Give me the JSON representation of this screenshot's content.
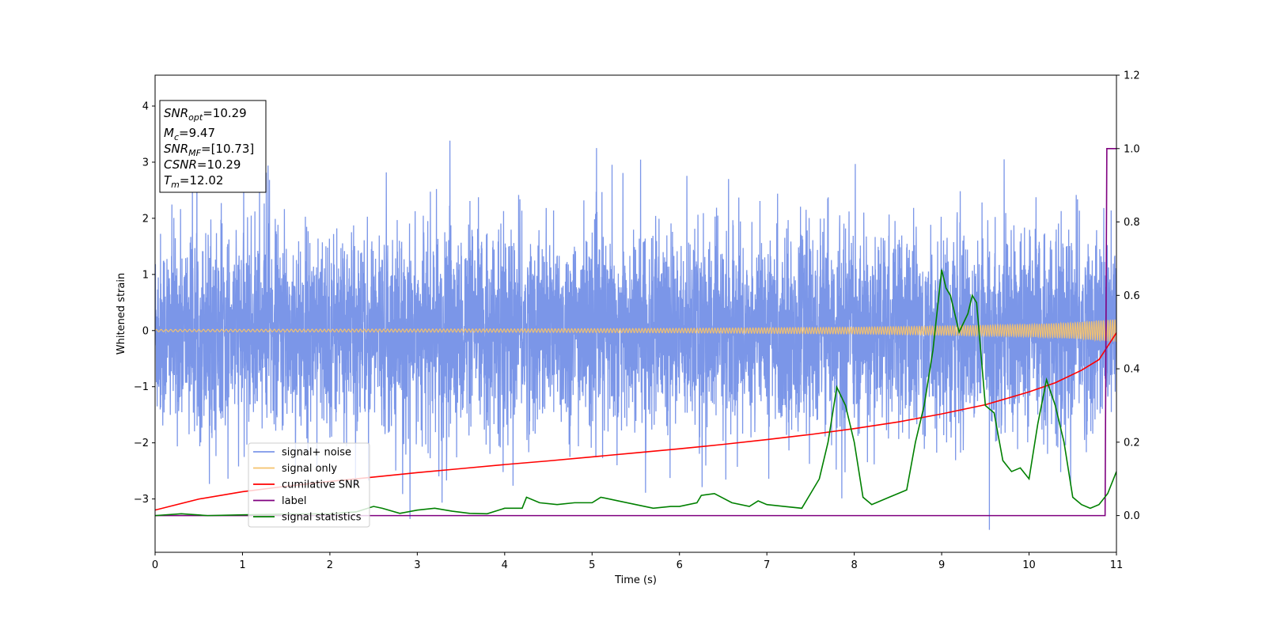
{
  "chart_data": {
    "type": "line",
    "xlabel": "Time (s)",
    "ylabel": "Whitened strain",
    "xlim": [
      0,
      11
    ],
    "ylim": [
      -3.95,
      4.55
    ],
    "y2lim": [
      -0.1,
      1.2
    ],
    "xticks": [
      0,
      1,
      2,
      3,
      4,
      5,
      6,
      7,
      8,
      9,
      10,
      11
    ],
    "yticks": [
      -3,
      -2,
      -1,
      0,
      1,
      2,
      3,
      4
    ],
    "y2ticks": [
      "0.0",
      "0.2",
      "0.4",
      "0.6",
      "0.8",
      "1.0",
      "1.2"
    ],
    "y2tick_values": [
      0.0,
      0.2,
      0.4,
      0.6,
      0.8,
      1.0,
      1.2
    ],
    "grid": false,
    "legend_position": "lower-left",
    "annotation": {
      "lines": [
        {
          "base": "SNR",
          "sub": "opt",
          "value": "=10.29"
        },
        {
          "base": "M",
          "sub": "c",
          "value": "=9.47"
        },
        {
          "base": "SNR",
          "sub": "MF",
          "value": "=[10.73]"
        },
        {
          "base": "CSNR",
          "sub": "",
          "value": "=10.29"
        },
        {
          "base": "T",
          "sub": "m",
          "value": "=12.02"
        }
      ]
    },
    "series": [
      {
        "name": "signal+ noise",
        "axis": "left",
        "color": "#7b96e8",
        "description_points": {
          "mean": 0,
          "typical_band": [
            -1.5,
            1.5
          ],
          "spikes_max": 3.62,
          "spikes_min": -3.55
        }
      },
      {
        "name": "signal only",
        "axis": "left",
        "color": "#f5c26b",
        "amplitude_x": [
          0,
          2,
          4,
          6,
          8,
          9,
          10,
          10.5,
          11
        ],
        "amplitude_y": [
          0.02,
          0.025,
          0.03,
          0.04,
          0.06,
          0.08,
          0.11,
          0.14,
          0.2
        ]
      },
      {
        "name": "cumilative SNR",
        "axis": "right",
        "color": "#ff0000",
        "x": [
          0,
          0.5,
          1,
          1.5,
          2,
          2.5,
          3,
          3.5,
          4,
          4.5,
          5,
          5.5,
          6,
          6.5,
          7,
          7.5,
          8,
          8.5,
          9,
          9.5,
          10,
          10.3,
          10.6,
          10.8,
          11
        ],
        "y": [
          0.015,
          0.045,
          0.065,
          0.08,
          0.093,
          0.105,
          0.117,
          0.128,
          0.139,
          0.149,
          0.16,
          0.171,
          0.182,
          0.194,
          0.207,
          0.221,
          0.237,
          0.255,
          0.277,
          0.302,
          0.337,
          0.362,
          0.396,
          0.425,
          0.498
        ]
      },
      {
        "name": "label",
        "axis": "right",
        "color": "#7f007f",
        "x": [
          0,
          10.87,
          10.89,
          11
        ],
        "y": [
          0.0,
          0.0,
          1.0,
          1.0
        ]
      },
      {
        "name": "signal statistics",
        "axis": "right",
        "color": "#008000",
        "x": [
          0,
          0.3,
          0.6,
          1.0,
          1.5,
          2.0,
          2.3,
          2.5,
          2.6,
          2.8,
          3.0,
          3.2,
          3.4,
          3.6,
          3.8,
          4.0,
          4.2,
          4.25,
          4.4,
          4.6,
          4.8,
          5.0,
          5.1,
          5.3,
          5.5,
          5.7,
          5.9,
          6.0,
          6.2,
          6.25,
          6.4,
          6.6,
          6.8,
          6.9,
          7.0,
          7.2,
          7.4,
          7.6,
          7.7,
          7.8,
          7.9,
          8.0,
          8.1,
          8.2,
          8.4,
          8.6,
          8.7,
          8.8,
          8.9,
          9.0,
          9.05,
          9.1,
          9.2,
          9.3,
          9.35,
          9.4,
          9.5,
          9.6,
          9.7,
          9.8,
          9.9,
          10.0,
          10.1,
          10.2,
          10.3,
          10.4,
          10.5,
          10.6,
          10.7,
          10.8,
          10.9,
          11.0
        ],
        "y": [
          0.0,
          0.005,
          0.0,
          0.002,
          0.004,
          0.005,
          0.01,
          0.025,
          0.02,
          0.006,
          0.015,
          0.02,
          0.012,
          0.006,
          0.005,
          0.02,
          0.02,
          0.05,
          0.035,
          0.03,
          0.035,
          0.035,
          0.05,
          0.04,
          0.03,
          0.02,
          0.025,
          0.025,
          0.035,
          0.055,
          0.06,
          0.035,
          0.025,
          0.04,
          0.03,
          0.025,
          0.02,
          0.1,
          0.2,
          0.35,
          0.3,
          0.2,
          0.05,
          0.03,
          0.05,
          0.07,
          0.2,
          0.3,
          0.45,
          0.67,
          0.62,
          0.6,
          0.5,
          0.55,
          0.6,
          0.58,
          0.3,
          0.28,
          0.15,
          0.12,
          0.13,
          0.1,
          0.25,
          0.37,
          0.3,
          0.2,
          0.05,
          0.03,
          0.02,
          0.03,
          0.06,
          0.12
        ]
      }
    ]
  }
}
